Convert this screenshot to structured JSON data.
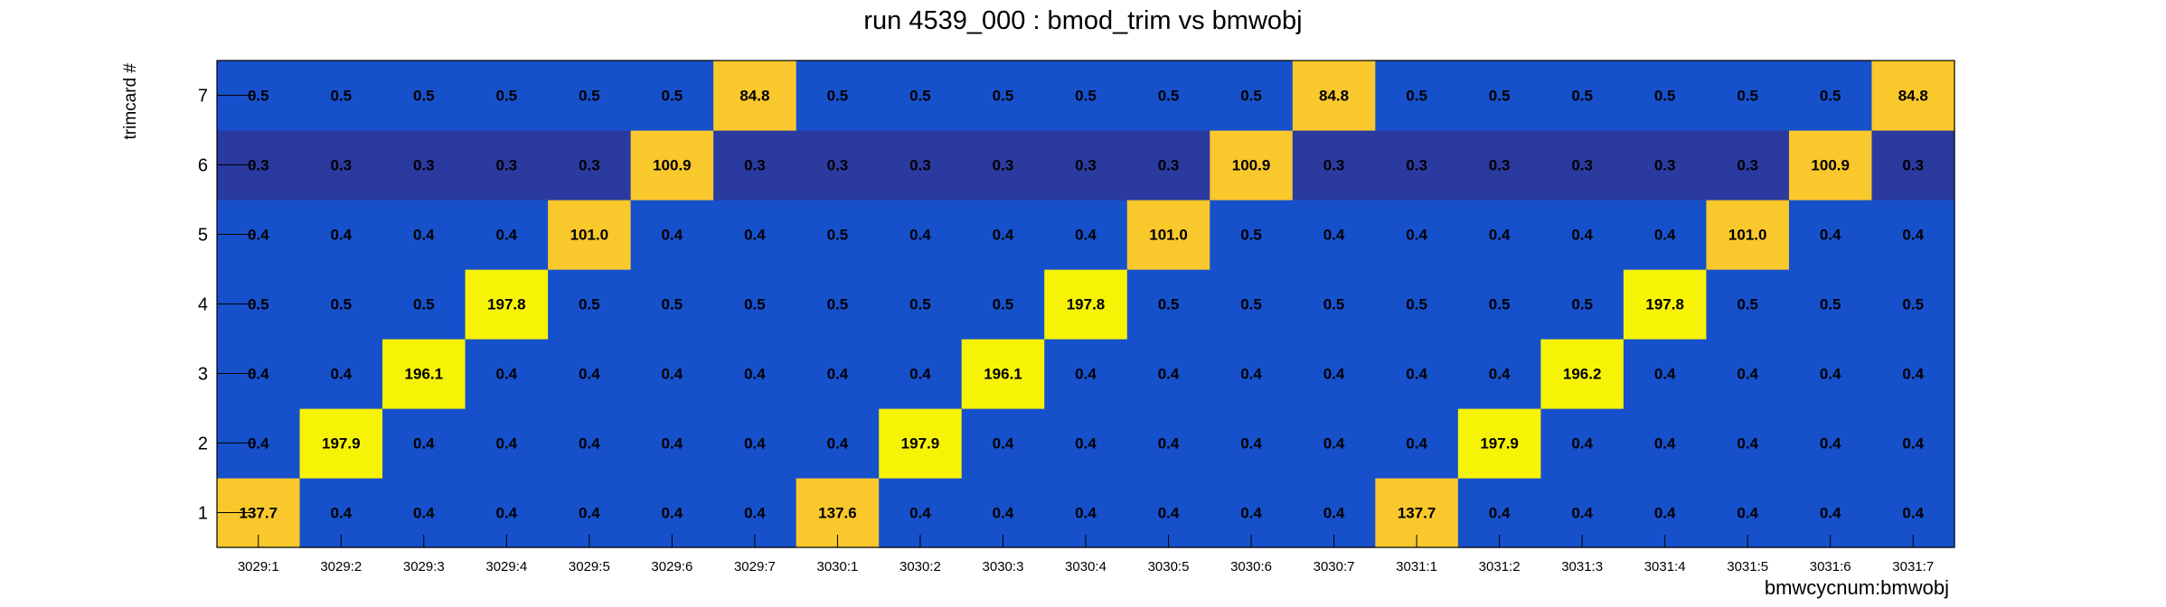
{
  "chart_data": {
    "type": "heatmap",
    "title": "run 4539_000 : bmod_trim vs bmwobj",
    "xlabel": "bmwcycnum:bmwobj",
    "ylabel": "trimcard #",
    "x": [
      "3029:1",
      "3029:2",
      "3029:3",
      "3029:4",
      "3029:5",
      "3029:6",
      "3029:7",
      "3030:1",
      "3030:2",
      "3030:3",
      "3030:4",
      "3030:5",
      "3030:6",
      "3030:7",
      "3031:1",
      "3031:2",
      "3031:3",
      "3031:4",
      "3031:5",
      "3031:6",
      "3031:7"
    ],
    "y": [
      "1",
      "2",
      "3",
      "4",
      "5",
      "6",
      "7"
    ],
    "z": [
      [
        "137.7",
        "0.4",
        "0.4",
        "0.4",
        "0.4",
        "0.4",
        "0.4",
        "137.6",
        "0.4",
        "0.4",
        "0.4",
        "0.4",
        "0.4",
        "0.4",
        "137.7",
        "0.4",
        "0.4",
        "0.4",
        "0.4",
        "0.4",
        "0.4"
      ],
      [
        "0.4",
        "197.9",
        "0.4",
        "0.4",
        "0.4",
        "0.4",
        "0.4",
        "0.4",
        "197.9",
        "0.4",
        "0.4",
        "0.4",
        "0.4",
        "0.4",
        "0.4",
        "197.9",
        "0.4",
        "0.4",
        "0.4",
        "0.4",
        "0.4"
      ],
      [
        "0.4",
        "0.4",
        "196.1",
        "0.4",
        "0.4",
        "0.4",
        "0.4",
        "0.4",
        "0.4",
        "196.1",
        "0.4",
        "0.4",
        "0.4",
        "0.4",
        "0.4",
        "0.4",
        "196.2",
        "0.4",
        "0.4",
        "0.4",
        "0.4"
      ],
      [
        "0.5",
        "0.5",
        "0.5",
        "197.8",
        "0.5",
        "0.5",
        "0.5",
        "0.5",
        "0.5",
        "0.5",
        "197.8",
        "0.5",
        "0.5",
        "0.5",
        "0.5",
        "0.5",
        "0.5",
        "197.8",
        "0.5",
        "0.5",
        "0.5"
      ],
      [
        "0.4",
        "0.4",
        "0.4",
        "0.4",
        "101.0",
        "0.4",
        "0.4",
        "0.5",
        "0.4",
        "0.4",
        "0.4",
        "101.0",
        "0.5",
        "0.4",
        "0.4",
        "0.4",
        "0.4",
        "0.4",
        "101.0",
        "0.4",
        "0.4"
      ],
      [
        "0.3",
        "0.3",
        "0.3",
        "0.3",
        "0.3",
        "100.9",
        "0.3",
        "0.3",
        "0.3",
        "0.3",
        "0.3",
        "0.3",
        "100.9",
        "0.3",
        "0.3",
        "0.3",
        "0.3",
        "0.3",
        "0.3",
        "100.9",
        "0.3"
      ],
      [
        "0.5",
        "0.5",
        "0.5",
        "0.5",
        "0.5",
        "0.5",
        "84.8",
        "0.5",
        "0.5",
        "0.5",
        "0.5",
        "0.5",
        "0.5",
        "84.8",
        "0.5",
        "0.5",
        "0.5",
        "0.5",
        "0.5",
        "0.5",
        "84.8"
      ]
    ],
    "colors": {
      "lowest": "#2B3A9E",
      "low": "#1750CB",
      "mid": "#F9C82C",
      "high": "#F7F307",
      "text": "#000000"
    }
  }
}
